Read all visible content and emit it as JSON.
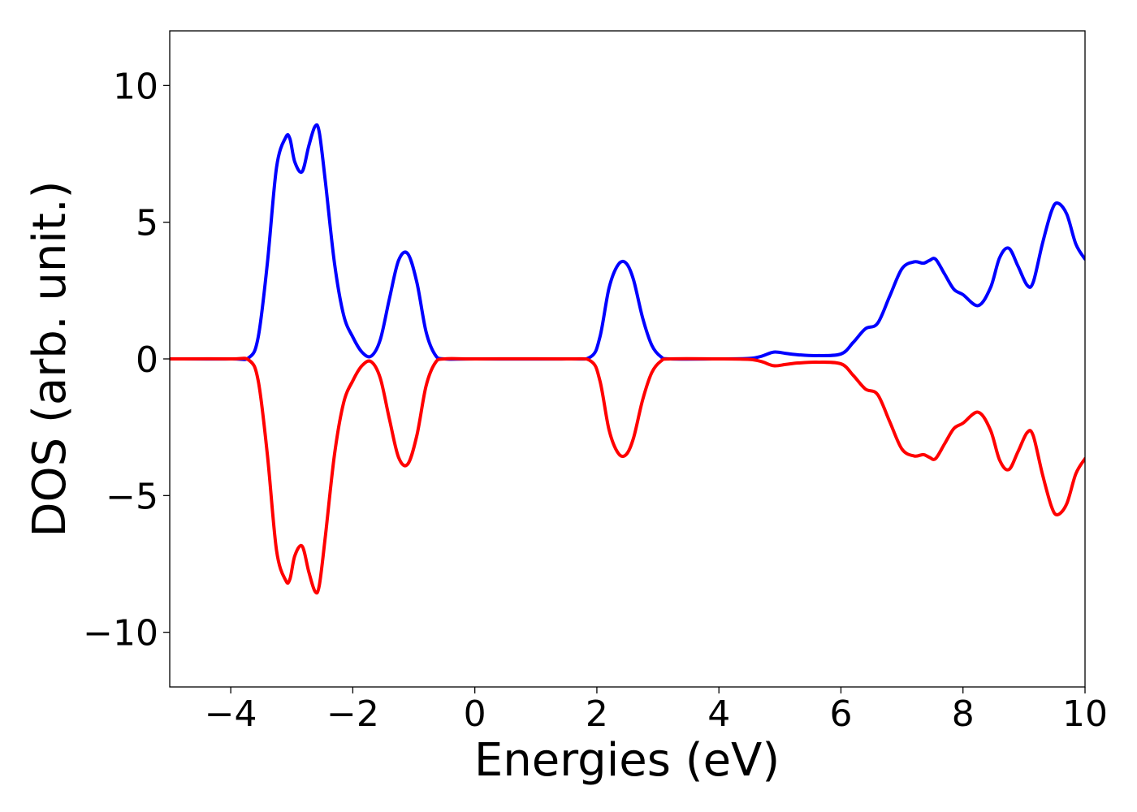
{
  "chart_data": {
    "type": "line",
    "title": "",
    "xlabel": "Energies (eV)",
    "ylabel": "DOS (arb. unit.)",
    "xlim": [
      -5,
      10
    ],
    "ylim": [
      -12,
      12
    ],
    "xticks": [
      -4,
      -2,
      0,
      2,
      4,
      6,
      8,
      10
    ],
    "xtick_labels": [
      "−4",
      "−2",
      "0",
      "2",
      "4",
      "6",
      "8",
      "10"
    ],
    "yticks": [
      10,
      5,
      0,
      -5,
      -10
    ],
    "ytick_labels": [
      "10",
      "5",
      "0",
      "−5",
      "−10"
    ],
    "grid": false,
    "legend": "none",
    "series": [
      {
        "color": "#0000ff",
        "x": [
          -5,
          -4,
          -3.7,
          -3.55,
          -3.4,
          -3.25,
          -3.1,
          -3.03,
          -2.95,
          -2.83,
          -2.72,
          -2.62,
          -2.55,
          -2.45,
          -2.3,
          -2.15,
          -2.0,
          -1.85,
          -1.7,
          -1.55,
          -1.4,
          -1.25,
          -1.1,
          -0.95,
          -0.8,
          -0.65,
          -0.5,
          0,
          1.5,
          1.9,
          2.05,
          2.2,
          2.35,
          2.48,
          2.6,
          2.75,
          2.9,
          3.05,
          3.2,
          4.0,
          4.5,
          4.7,
          4.9,
          5.1,
          5.3,
          5.6,
          6.0,
          6.2,
          6.4,
          6.6,
          6.8,
          7.0,
          7.2,
          7.35,
          7.45,
          7.55,
          7.7,
          7.85,
          8.0,
          8.25,
          8.45,
          8.6,
          8.75,
          8.9,
          9.05,
          9.15,
          9.3,
          9.45,
          9.55,
          9.7,
          9.85,
          10.0
        ],
        "y": [
          0,
          0,
          0.05,
          0.8,
          3.5,
          7.0,
          8.1,
          8.05,
          7.2,
          6.85,
          7.8,
          8.5,
          8.3,
          6.5,
          3.5,
          1.6,
          0.8,
          0.25,
          0.1,
          0.7,
          2.2,
          3.6,
          3.85,
          2.8,
          1.0,
          0.15,
          0,
          0,
          0,
          0.08,
          0.8,
          2.6,
          3.45,
          3.5,
          2.9,
          1.5,
          0.5,
          0.08,
          0,
          0,
          0.02,
          0.1,
          0.25,
          0.2,
          0.15,
          0.12,
          0.18,
          0.6,
          1.1,
          1.3,
          2.3,
          3.3,
          3.55,
          3.5,
          3.6,
          3.65,
          3.1,
          2.55,
          2.35,
          1.95,
          2.6,
          3.7,
          4.05,
          3.4,
          2.7,
          2.8,
          4.2,
          5.4,
          5.7,
          5.3,
          4.2,
          3.65
        ]
      },
      {
        "color": "#ff0000",
        "x": [
          -5,
          -4,
          -3.7,
          -3.55,
          -3.4,
          -3.25,
          -3.1,
          -3.03,
          -2.95,
          -2.83,
          -2.72,
          -2.62,
          -2.55,
          -2.45,
          -2.3,
          -2.15,
          -2.0,
          -1.85,
          -1.7,
          -1.55,
          -1.4,
          -1.25,
          -1.1,
          -0.95,
          -0.8,
          -0.65,
          -0.5,
          0,
          1.5,
          1.9,
          2.05,
          2.2,
          2.35,
          2.48,
          2.6,
          2.75,
          2.9,
          3.05,
          3.2,
          4.0,
          4.5,
          4.7,
          4.9,
          5.1,
          5.3,
          5.6,
          6.0,
          6.2,
          6.4,
          6.6,
          6.8,
          7.0,
          7.2,
          7.35,
          7.45,
          7.55,
          7.7,
          7.85,
          8.0,
          8.25,
          8.45,
          8.6,
          8.75,
          8.9,
          9.05,
          9.15,
          9.3,
          9.45,
          9.55,
          9.7,
          9.85,
          10.0
        ],
        "y": [
          0,
          0,
          -0.05,
          -0.8,
          -3.5,
          -7.0,
          -8.1,
          -8.05,
          -7.2,
          -6.85,
          -7.8,
          -8.5,
          -8.3,
          -6.5,
          -3.5,
          -1.6,
          -0.8,
          -0.25,
          -0.1,
          -0.7,
          -2.2,
          -3.6,
          -3.85,
          -2.8,
          -1.0,
          -0.15,
          0,
          0,
          0,
          -0.08,
          -0.8,
          -2.6,
          -3.45,
          -3.5,
          -2.9,
          -1.5,
          -0.5,
          -0.08,
          0,
          0,
          -0.02,
          -0.1,
          -0.25,
          -0.2,
          -0.15,
          -0.12,
          -0.18,
          -0.6,
          -1.1,
          -1.3,
          -2.3,
          -3.3,
          -3.55,
          -3.5,
          -3.6,
          -3.65,
          -3.1,
          -2.55,
          -2.35,
          -1.95,
          -2.6,
          -3.7,
          -4.05,
          -3.4,
          -2.7,
          -2.8,
          -4.2,
          -5.4,
          -5.7,
          -5.3,
          -4.2,
          -3.65
        ]
      }
    ]
  }
}
